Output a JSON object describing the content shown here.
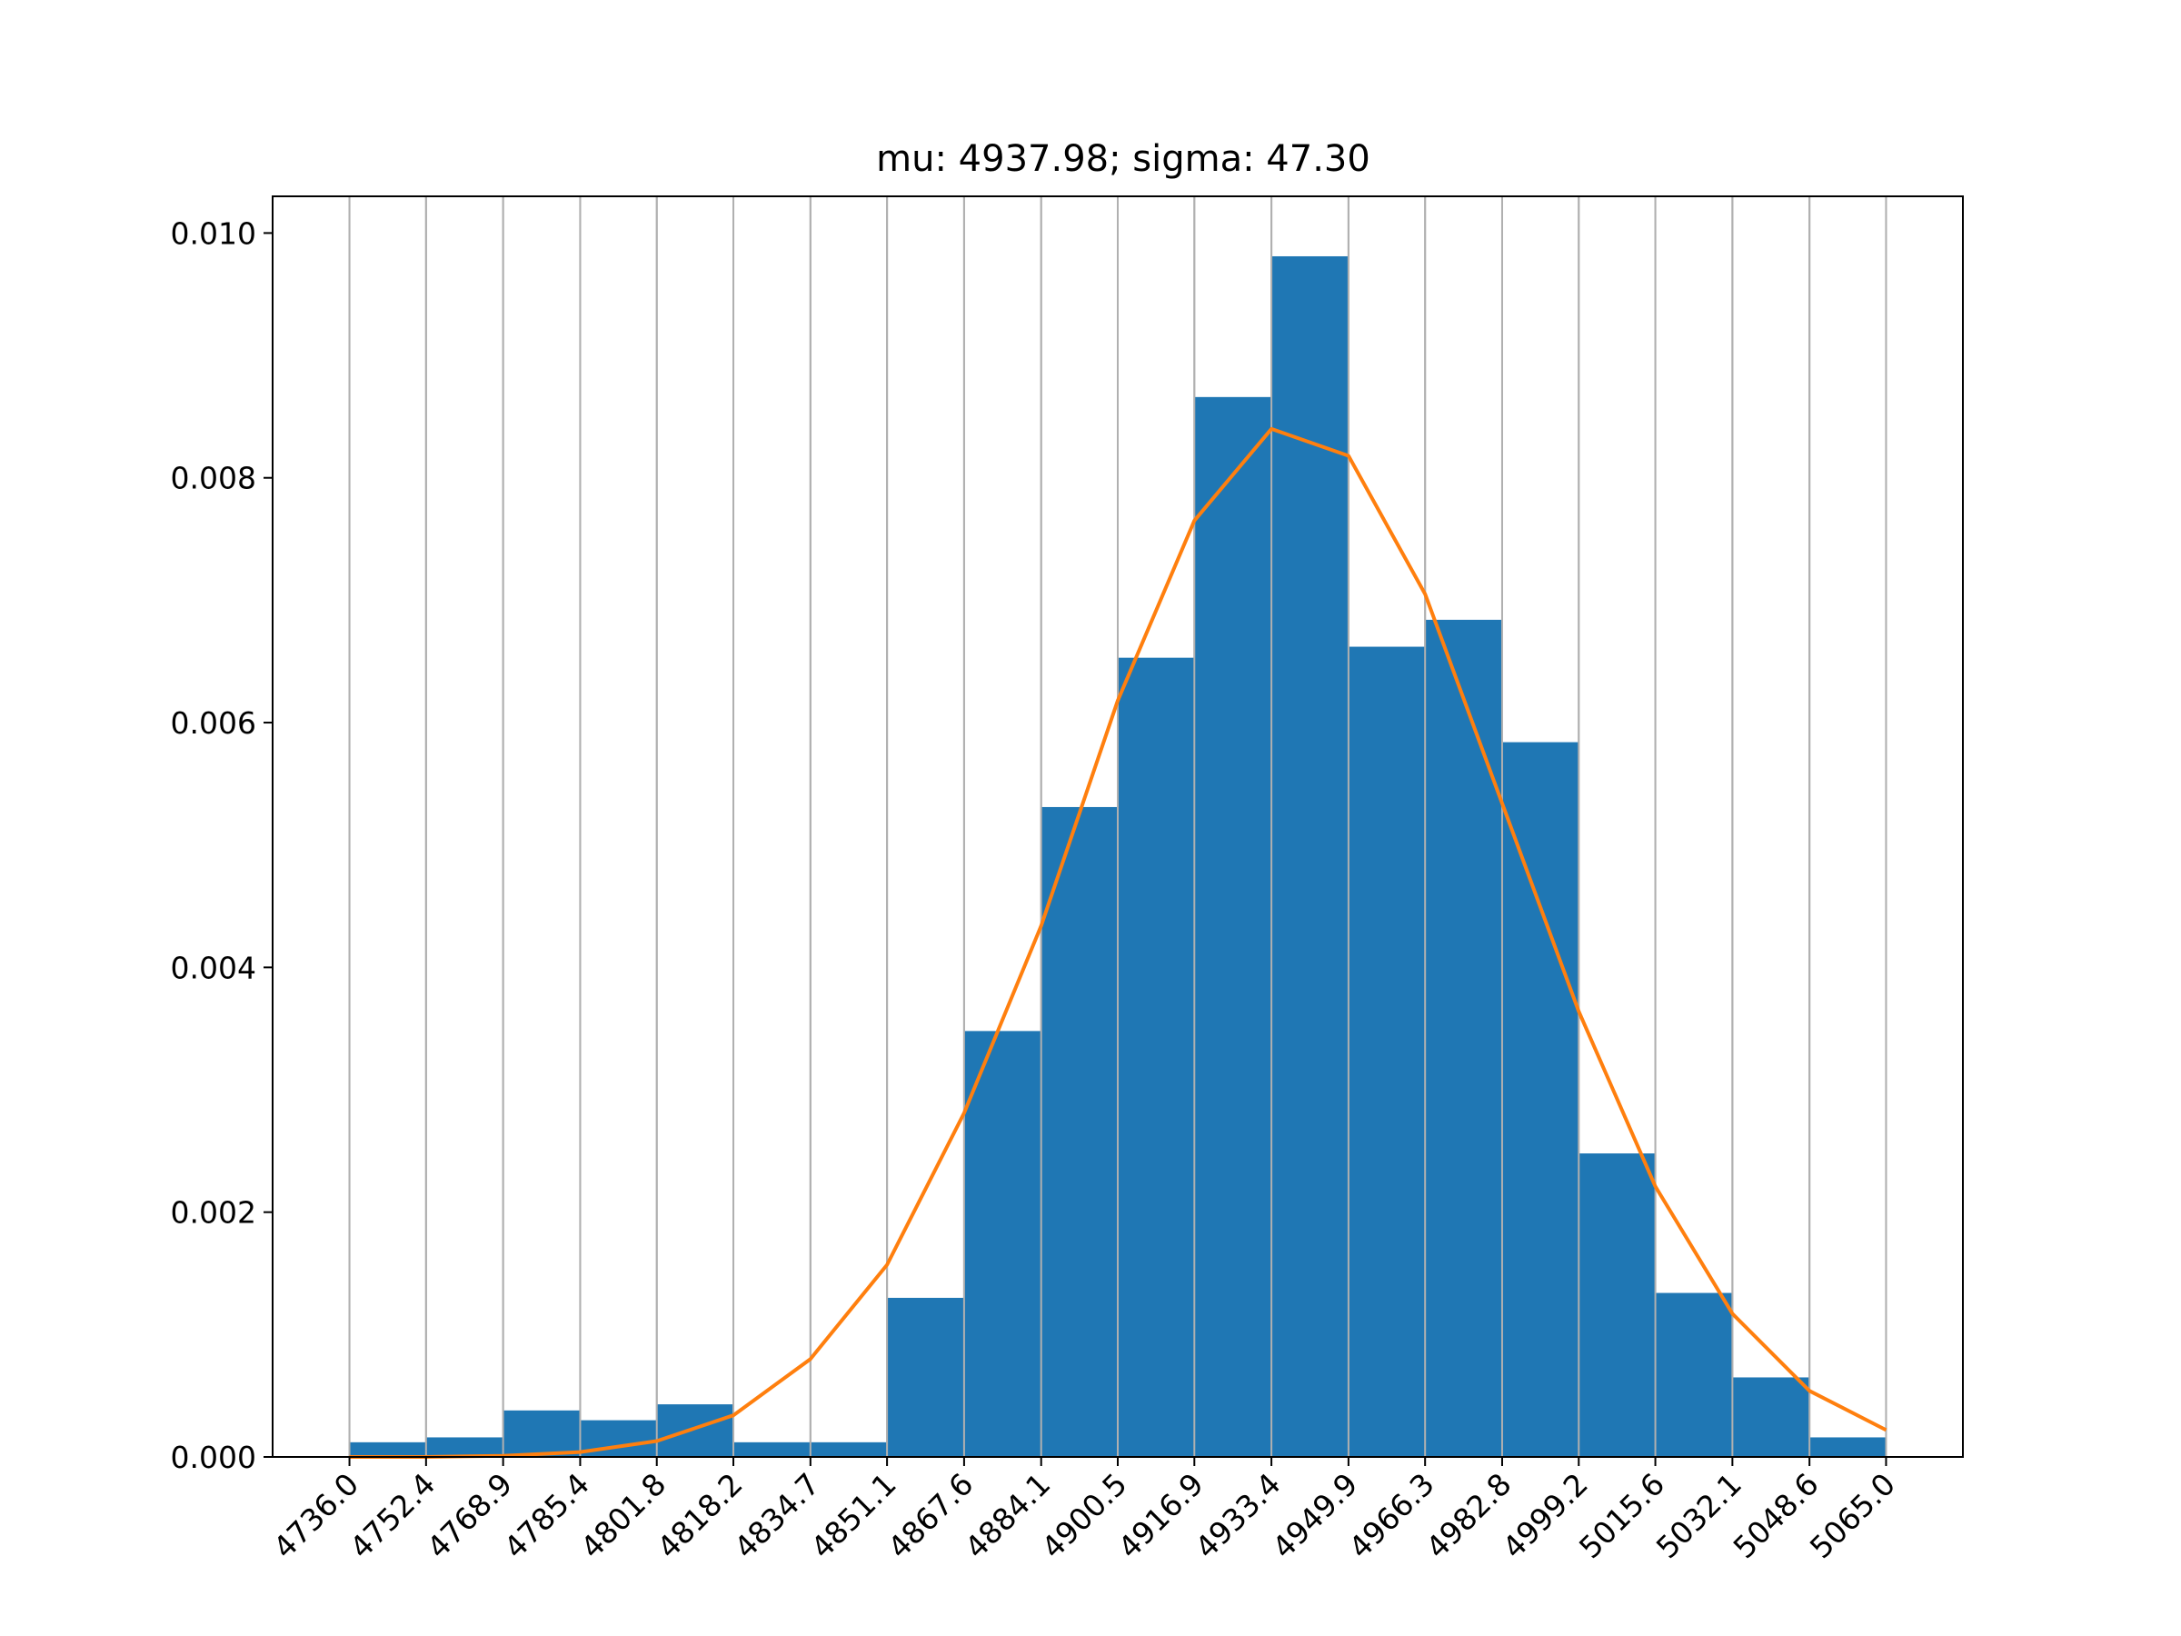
{
  "chart_data": {
    "type": "bar",
    "title": "mu: 4937.98; sigma: 47.30",
    "xlabel": "",
    "ylabel": "",
    "bin_edges": [
      4736.0,
      4752.4,
      4768.9,
      4785.4,
      4801.8,
      4818.2,
      4834.7,
      4851.1,
      4867.6,
      4884.1,
      4900.5,
      4916.9,
      4933.4,
      4949.9,
      4966.3,
      4982.8,
      4999.2,
      5015.6,
      5032.1,
      5048.6,
      5065.0
    ],
    "x_tick_labels": [
      "4736.0",
      "4752.4",
      "4768.9",
      "4785.4",
      "4801.8",
      "4818.2",
      "4834.7",
      "4851.1",
      "4867.6",
      "4884.1",
      "4900.5",
      "4916.9",
      "4933.4",
      "4949.9",
      "4966.3",
      "4982.8",
      "4999.2",
      "5015.6",
      "5032.1",
      "5048.6",
      "5065.0"
    ],
    "series": [
      {
        "type": "bar",
        "values": [
          0.00012,
          0.00016,
          0.00038,
          0.0003,
          0.00043,
          0.00012,
          0.00012,
          0.0013,
          0.00348,
          0.00531,
          0.00653,
          0.00866,
          0.00981,
          0.00662,
          0.00684,
          0.00584,
          0.00248,
          0.00134,
          0.00065,
          0.00016
        ],
        "color": "#1f77b4"
      },
      {
        "type": "line",
        "x": [
          4736.0,
          4752.4,
          4768.9,
          4785.4,
          4801.8,
          4818.2,
          4834.7,
          4851.1,
          4867.6,
          4884.1,
          4900.5,
          4916.9,
          4933.4,
          4949.9,
          4966.3,
          4982.8,
          4999.2,
          5015.6,
          5032.1,
          5048.6,
          5065.0
        ],
        "values": [
          0.0,
          0.0,
          1e-05,
          4e-05,
          0.00013,
          0.00034,
          0.0008,
          0.00157,
          0.00281,
          0.00434,
          0.00618,
          0.00765,
          0.0084,
          0.00818,
          0.00705,
          0.00534,
          0.00364,
          0.00221,
          0.00117,
          0.00054,
          0.00022
        ],
        "color": "#ff7f0e"
      }
    ],
    "y_ticks": [
      0.0,
      0.002,
      0.004,
      0.006,
      0.008,
      0.01
    ],
    "y_tick_labels": [
      "0.000",
      "0.002",
      "0.004",
      "0.006",
      "0.008",
      "0.010"
    ],
    "xlim": [
      4719.55,
      5081.45
    ],
    "ylim": [
      0,
      0.0103
    ],
    "grid": "x",
    "legend": "none"
  }
}
